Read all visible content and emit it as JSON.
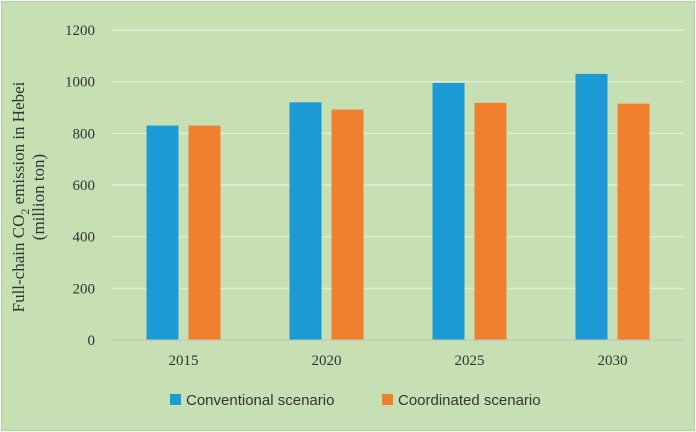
{
  "chart_data": {
    "type": "bar",
    "categories": [
      "2015",
      "2020",
      "2025",
      "2030"
    ],
    "series": [
      {
        "name": "Conventional scenario",
        "color": "#1b9ad6",
        "values": [
          830,
          920,
          995,
          1030
        ]
      },
      {
        "name": "Coordinated scenario",
        "color": "#f07f2e",
        "values": [
          830,
          892,
          918,
          915
        ]
      }
    ],
    "ylabel_line1": "Full-chain CO",
    "ylabel_sub": "2",
    "ylabel_line1_tail": " emission in Hebei",
    "ylabel_line2": "(million ton)",
    "ylim": [
      0,
      1200
    ],
    "yticks": [
      0,
      200,
      400,
      600,
      800,
      1000,
      1200
    ],
    "grid": true,
    "legend_position": "bottom-center",
    "background_color": "#c6e0b4",
    "gridline_color": "#e6f0de"
  }
}
